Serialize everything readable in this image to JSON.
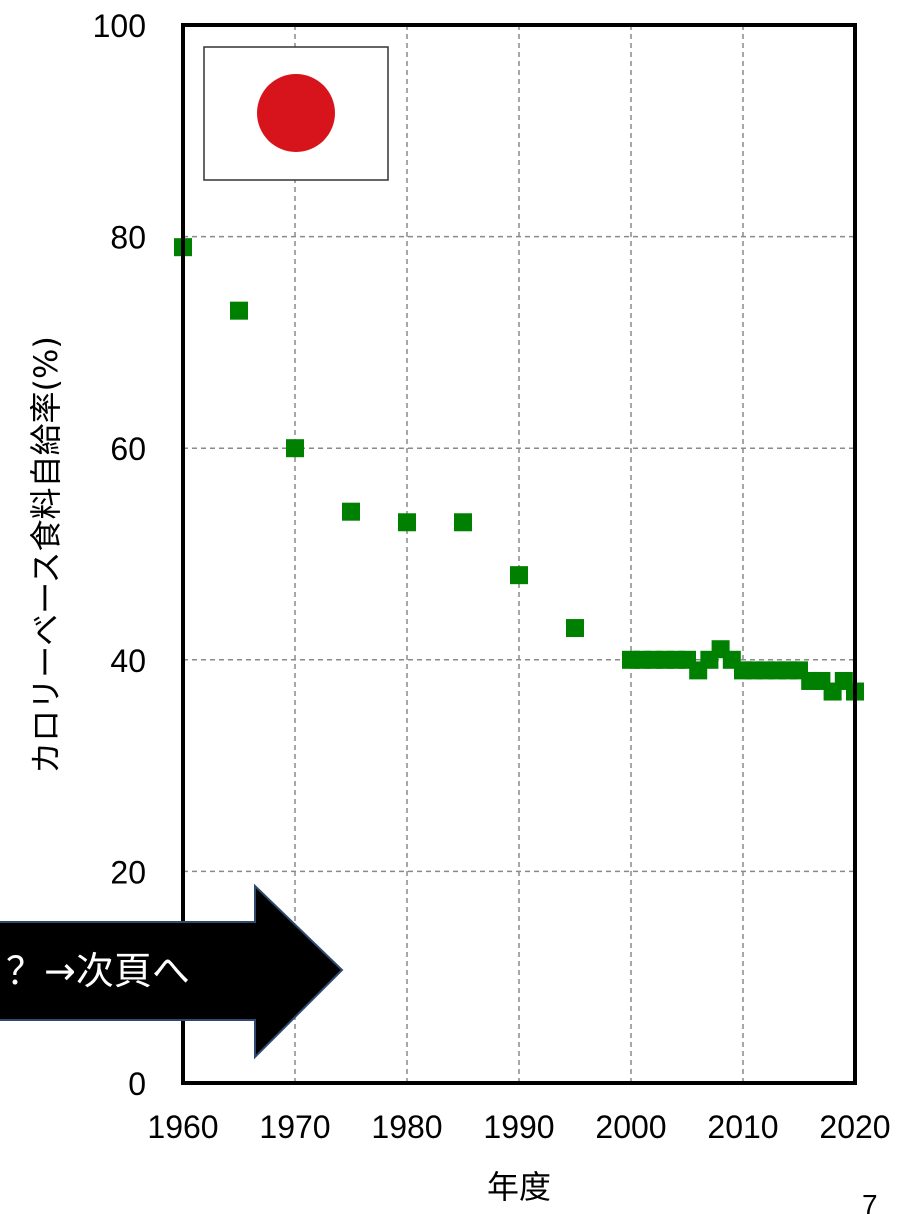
{
  "chart_data": {
    "type": "scatter",
    "xlabel": "年度",
    "ylabel": "カロリーベース食料自給率(%)",
    "xlim": [
      1960,
      2020
    ],
    "ylim": [
      0,
      100
    ],
    "x_ticks": [
      "1960",
      "1970",
      "1980",
      "1990",
      "2000",
      "2010",
      "2020"
    ],
    "y_ticks": [
      "0",
      "20",
      "40",
      "60",
      "80",
      "100"
    ],
    "grid": true,
    "series": [
      {
        "x": [
          1960,
          1965,
          1970,
          1975,
          1980,
          1985,
          1990,
          1995,
          2000,
          2001,
          2002,
          2003,
          2004,
          2005,
          2006,
          2007,
          2008,
          2009,
          2010,
          2011,
          2012,
          2013,
          2014,
          2015,
          2016,
          2017,
          2018,
          2019,
          2020
        ],
        "values": [
          79,
          73,
          60,
          54,
          53,
          53,
          48,
          43,
          40,
          40,
          40,
          40,
          40,
          40,
          39,
          40,
          41,
          40,
          39,
          39,
          39,
          39,
          39,
          39,
          38,
          38,
          37,
          38,
          37
        ]
      }
    ]
  },
  "colors": {
    "marker": "#008000",
    "flag_disc": "#d7141c"
  },
  "flag": {
    "icon": "japan-flag-icon"
  },
  "callout": {
    "text": "？→次頁へ"
  },
  "page_number": "7"
}
